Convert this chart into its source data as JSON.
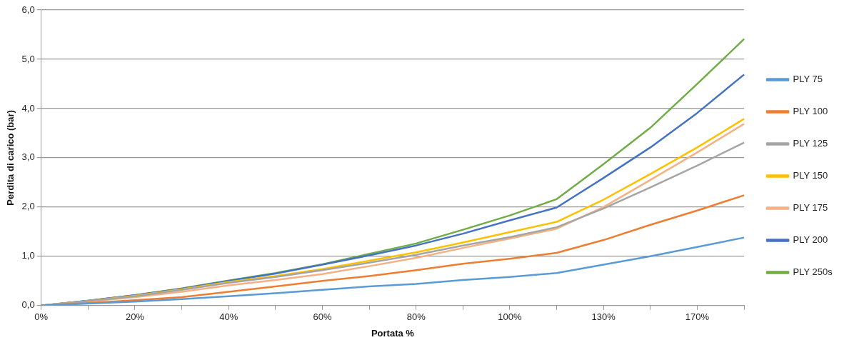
{
  "chart_data": {
    "type": "line",
    "xlabel": "Portata %",
    "ylabel": "Perdita di carico (bar)",
    "categories": [
      "0%",
      null,
      "20%",
      null,
      "40%",
      null,
      "60%",
      null,
      "80%",
      null,
      "100%",
      null,
      "130%",
      null,
      "170%",
      null
    ],
    "series": [
      {
        "name": "PLY 75",
        "color": "#5b9bd5",
        "values": [
          0,
          0.04,
          0.08,
          0.13,
          0.19,
          0.25,
          0.32,
          0.39,
          0.44,
          0.52,
          0.58,
          0.66,
          0.83,
          1.0,
          1.19,
          1.38
        ]
      },
      {
        "name": "PLY 100",
        "color": "#ed7d31",
        "values": [
          0,
          0.05,
          0.11,
          0.17,
          0.28,
          0.39,
          0.5,
          0.6,
          0.72,
          0.85,
          0.95,
          1.07,
          1.33,
          1.64,
          1.93,
          2.24
        ]
      },
      {
        "name": "PLY 125",
        "color": "#a5a5a5",
        "values": [
          0,
          0.09,
          0.19,
          0.32,
          0.46,
          0.58,
          0.72,
          0.87,
          1.03,
          1.22,
          1.39,
          1.59,
          1.97,
          2.4,
          2.84,
          3.31
        ]
      },
      {
        "name": "PLY 150",
        "color": "#ffc000",
        "values": [
          0,
          0.09,
          0.2,
          0.33,
          0.48,
          0.6,
          0.74,
          0.91,
          1.08,
          1.28,
          1.49,
          1.7,
          2.15,
          2.67,
          3.21,
          3.79
        ]
      },
      {
        "name": "PLY 175",
        "color": "#f4b183",
        "values": [
          0,
          0.08,
          0.17,
          0.28,
          0.41,
          0.52,
          0.64,
          0.8,
          0.97,
          1.17,
          1.36,
          1.56,
          2.0,
          2.55,
          3.11,
          3.69
        ]
      },
      {
        "name": "PLY 200",
        "color": "#4472c4",
        "values": [
          0,
          0.1,
          0.21,
          0.34,
          0.5,
          0.65,
          0.83,
          1.02,
          1.22,
          1.46,
          1.73,
          1.99,
          2.59,
          3.21,
          3.91,
          4.69
        ]
      },
      {
        "name": "PLY 250s",
        "color": "#70ad47",
        "values": [
          0,
          0.1,
          0.21,
          0.35,
          0.51,
          0.66,
          0.84,
          1.05,
          1.26,
          1.54,
          1.83,
          2.16,
          2.87,
          3.61,
          4.5,
          5.41
        ]
      }
    ],
    "ylim": [
      0,
      6
    ],
    "yticks": [
      {
        "value": 0,
        "label": "0,0"
      },
      {
        "value": 1,
        "label": "1,0"
      },
      {
        "value": 2,
        "label": "2,0"
      },
      {
        "value": 3,
        "label": "3,0"
      },
      {
        "value": 4,
        "label": "4,0"
      },
      {
        "value": 5,
        "label": "5,0"
      },
      {
        "value": 6,
        "label": "6,0"
      }
    ],
    "grid": "y",
    "legend": "right",
    "marker": "none",
    "line_style": "solid"
  }
}
